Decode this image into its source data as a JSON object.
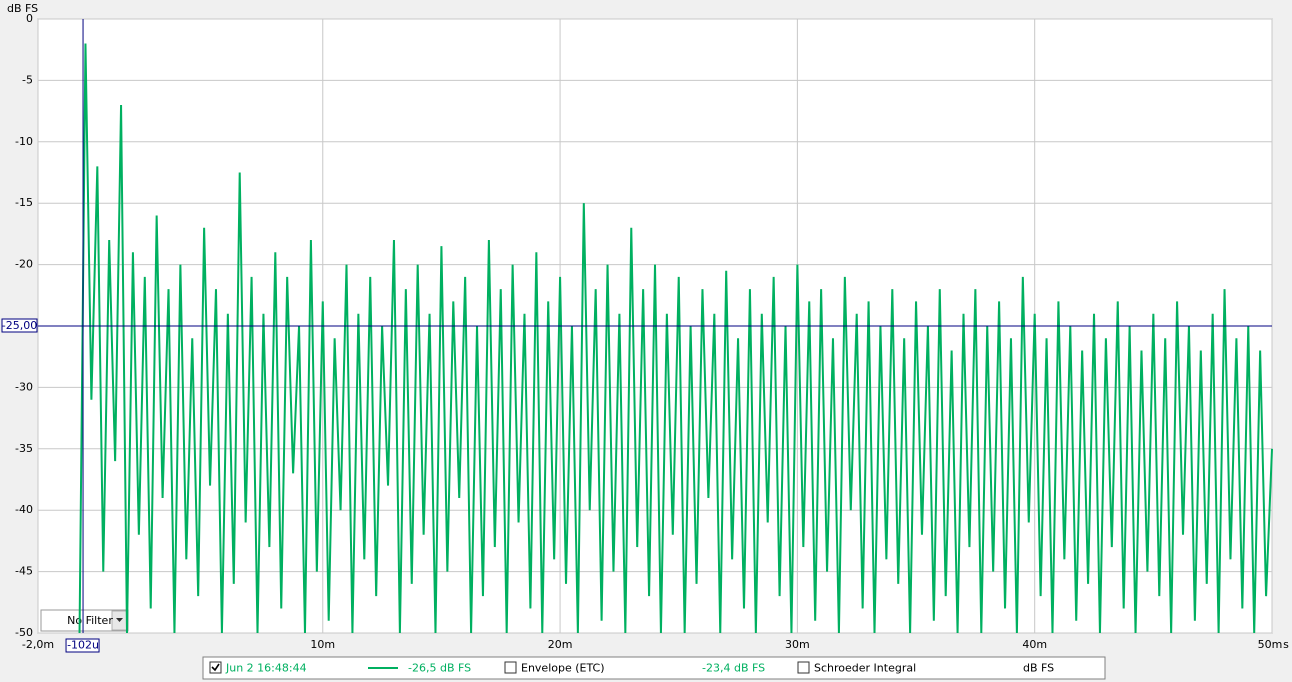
{
  "chart_data": {
    "type": "line",
    "y_label": "dB FS",
    "x_unit": "s",
    "xlim": [
      -2,
      50
    ],
    "xticks": [
      {
        "value": -2,
        "label": "-2,0m"
      },
      {
        "value": 10,
        "label": "10m"
      },
      {
        "value": 20,
        "label": "20m"
      },
      {
        "value": 30,
        "label": "30m"
      },
      {
        "value": 40,
        "label": "40m"
      },
      {
        "value": 50,
        "label": "50m"
      }
    ],
    "ylim": [
      -50,
      0
    ],
    "yticks": [
      0,
      -5,
      -10,
      -15,
      -20,
      -25,
      -30,
      -35,
      -40,
      -45,
      -50
    ],
    "grid": true,
    "cursor": {
      "color": "#000080",
      "x": {
        "value": -0.102,
        "label": "-102u"
      },
      "y": {
        "value": -25,
        "label": "-25,00"
      }
    },
    "filter": "No Filter",
    "x": [
      -0.25,
      0,
      0.25,
      0.5,
      0.75,
      1,
      1.25,
      1.5,
      1.75,
      2,
      2.25,
      2.5,
      2.75,
      3,
      3.25,
      3.5,
      3.75,
      4,
      4.25,
      4.5,
      4.75,
      5,
      5.25,
      5.5,
      5.75,
      6,
      6.25,
      6.5,
      6.75,
      7,
      7.25,
      7.5,
      7.75,
      8,
      8.25,
      8.5,
      8.75,
      9,
      9.25,
      9.5,
      9.75,
      10,
      10.25,
      10.5,
      10.75,
      11,
      11.25,
      11.5,
      11.75,
      12,
      12.25,
      12.5,
      12.75,
      13,
      13.25,
      13.5,
      13.75,
      14,
      14.25,
      14.5,
      14.75,
      15,
      15.25,
      15.5,
      15.75,
      16,
      16.25,
      16.5,
      16.75,
      17,
      17.25,
      17.5,
      17.75,
      18,
      18.25,
      18.5,
      18.75,
      19,
      19.25,
      19.5,
      19.75,
      20,
      20.25,
      20.5,
      20.75,
      21,
      21.25,
      21.5,
      21.75,
      22,
      22.25,
      22.5,
      22.75,
      23,
      23.25,
      23.5,
      23.75,
      24,
      24.25,
      24.5,
      24.75,
      25,
      25.25,
      25.5,
      25.75,
      26,
      26.25,
      26.5,
      26.75,
      27,
      27.25,
      27.5,
      27.75,
      28,
      28.25,
      28.5,
      28.75,
      29,
      29.25,
      29.5,
      29.75,
      30,
      30.25,
      30.5,
      30.75,
      31,
      31.25,
      31.5,
      31.75,
      32,
      32.25,
      32.5,
      32.75,
      33,
      33.25,
      33.5,
      33.75,
      34,
      34.25,
      34.5,
      34.75,
      35,
      35.25,
      35.5,
      35.75,
      36,
      36.25,
      36.5,
      36.75,
      37,
      37.25,
      37.5,
      37.75,
      38,
      38.25,
      38.5,
      38.75,
      39,
      39.25,
      39.5,
      39.75,
      40,
      40.25,
      40.5,
      40.75,
      41,
      41.25,
      41.5,
      41.75,
      42,
      42.25,
      42.5,
      42.75,
      43,
      43.25,
      43.5,
      43.75,
      44,
      44.25,
      44.5,
      44.75,
      45,
      45.25,
      45.5,
      45.75,
      46,
      46.25,
      46.5,
      46.75,
      47,
      47.25,
      47.5,
      47.75,
      48,
      48.25,
      48.5,
      48.75,
      49,
      49.25,
      49.5,
      49.75,
      50
    ],
    "series": [
      {
        "name": "Jun 2 16:48:44",
        "color": "#00b060",
        "values": [
          -50,
          -2,
          -31,
          -12,
          -45,
          -18,
          -36,
          -7,
          -50,
          -19,
          -42,
          -21,
          -48,
          -16,
          -39,
          -22,
          -50,
          -20,
          -44,
          -26,
          -47,
          -17,
          -38,
          -22,
          -50,
          -24,
          -46,
          -12.5,
          -41,
          -21,
          -50,
          -24,
          -43,
          -19,
          -48,
          -21,
          -37,
          -25,
          -50,
          -18,
          -45,
          -23,
          -49,
          -26,
          -40,
          -20,
          -50,
          -24,
          -44,
          -21,
          -47,
          -25,
          -38,
          -18,
          -50,
          -22,
          -46,
          -20,
          -42,
          -24,
          -50,
          -18.5,
          -45,
          -23,
          -39,
          -21,
          -50,
          -25,
          -47,
          -18,
          -43,
          -22,
          -50,
          -20,
          -41,
          -24,
          -48,
          -19,
          -50,
          -23,
          -44,
          -21,
          -46,
          -25,
          -50,
          -15,
          -40,
          -22,
          -49,
          -20,
          -45,
          -24,
          -50,
          -17,
          -43,
          -22,
          -47,
          -20,
          -50,
          -24,
          -42,
          -21,
          -50,
          -25,
          -46,
          -22,
          -39,
          -24,
          -50,
          -20.5,
          -44,
          -26,
          -48,
          -22,
          -50,
          -24,
          -41,
          -21,
          -47,
          -25,
          -50,
          -20,
          -43,
          -23,
          -49,
          -22,
          -45,
          -26,
          -50,
          -21,
          -40,
          -24,
          -48,
          -23,
          -50,
          -25,
          -44,
          -22,
          -46,
          -26,
          -50,
          -23,
          -42,
          -25,
          -49,
          -22,
          -47,
          -27,
          -50,
          -24,
          -43,
          -22,
          -50,
          -25,
          -45,
          -23,
          -48,
          -26,
          -50,
          -21,
          -41,
          -24,
          -47,
          -26,
          -50,
          -23,
          -44,
          -25,
          -49,
          -27,
          -46,
          -24,
          -50,
          -26,
          -43,
          -23,
          -48,
          -25,
          -50,
          -27,
          -45,
          -24,
          -47,
          -26,
          -50,
          -23,
          -42,
          -25,
          -49,
          -27,
          -46,
          -24,
          -50,
          -22,
          -44,
          -26,
          -48,
          -25,
          -50,
          -27,
          -47,
          -35
        ]
      }
    ],
    "legend": [
      {
        "name": "Jun 2 16:48:44",
        "checked": true,
        "readout": "-26,5 dB FS"
      },
      {
        "name": "Envelope (ETC)",
        "checked": false,
        "readout": "-23,4 dB FS"
      },
      {
        "name": "Schroeder Integral",
        "checked": false,
        "readout": "dB FS"
      }
    ]
  }
}
